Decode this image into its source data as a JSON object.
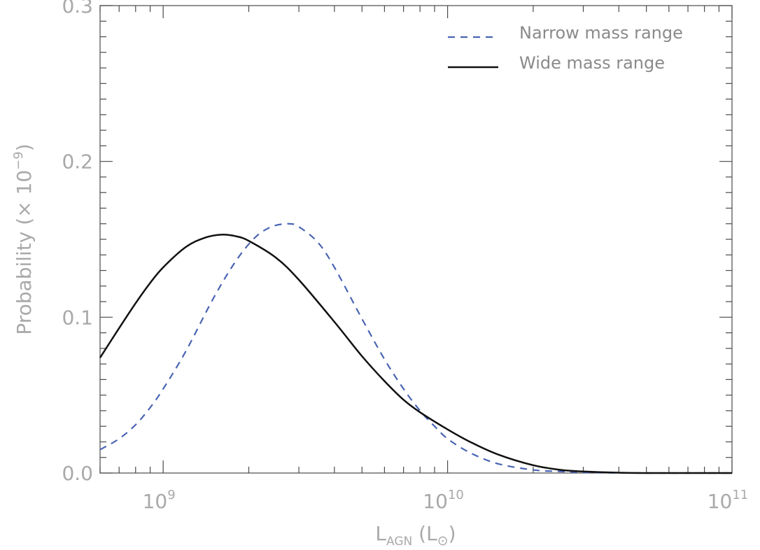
{
  "chart_data": {
    "type": "line",
    "xscale": "log",
    "xlim": [
      600000000,
      100000000000
    ],
    "ylim": [
      0,
      0.3
    ],
    "grid": false,
    "legend_position": "top-right",
    "xlabel": {
      "main": "L",
      "sub": "AGN",
      "open": " (L",
      "sub2": "⊙",
      "close": ")"
    },
    "ylabel": {
      "main": "Probability (× 10",
      "sup": "−9",
      "close": ")"
    },
    "x_ticks": [
      {
        "value": 1000000000,
        "base": "10",
        "exp": "9"
      },
      {
        "value": 10000000000,
        "base": "10",
        "exp": "10"
      },
      {
        "value": 100000000000,
        "base": "10",
        "exp": "11"
      }
    ],
    "y_ticks": [
      {
        "value": 0.0,
        "label": "0.0"
      },
      {
        "value": 0.1,
        "label": "0.1"
      },
      {
        "value": 0.2,
        "label": "0.2"
      },
      {
        "value": 0.3,
        "label": "0.3"
      }
    ],
    "series": [
      {
        "name": "Narrow mass range",
        "color": "#4a64b4",
        "style": "dashed",
        "x": [
          600000000,
          700000000,
          800000000,
          900000000,
          1000000000,
          1200000000,
          1500000000,
          1800000000,
          2100000000,
          2400000000,
          2750000000,
          3000000000,
          3500000000,
          4000000000,
          5000000000,
          6000000000,
          7000000000,
          8000000000,
          9000000000,
          10000000000,
          12000000000,
          15000000000,
          20000000000,
          25000000000,
          30000000000,
          40000000000,
          50000000000,
          70000000000,
          100000000000
        ],
        "y": [
          0.015,
          0.022,
          0.031,
          0.042,
          0.054,
          0.078,
          0.112,
          0.136,
          0.151,
          0.158,
          0.16,
          0.158,
          0.148,
          0.132,
          0.099,
          0.073,
          0.054,
          0.04,
          0.03,
          0.022,
          0.013,
          0.006,
          0.002,
          0.001,
          0.0004,
          0.0001,
          0.0,
          0.0,
          0.0
        ]
      },
      {
        "name": "Wide mass range",
        "color": "#111111",
        "style": "solid",
        "x": [
          600000000,
          700000000,
          800000000,
          900000000,
          1000000000,
          1200000000,
          1400000000,
          1600000000,
          1800000000,
          2000000000,
          2500000000,
          3000000000,
          4000000000,
          5000000000,
          6000000000,
          7000000000,
          8000000000,
          10000000000,
          12000000000,
          15000000000,
          20000000000,
          25000000000,
          30000000000,
          40000000000,
          50000000000,
          70000000000,
          100000000000
        ],
        "y": [
          0.074,
          0.093,
          0.109,
          0.122,
          0.132,
          0.145,
          0.151,
          0.153,
          0.152,
          0.149,
          0.138,
          0.124,
          0.097,
          0.075,
          0.059,
          0.047,
          0.039,
          0.028,
          0.02,
          0.012,
          0.005,
          0.002,
          0.001,
          0.0002,
          0.0,
          0.0,
          0.0
        ]
      }
    ]
  }
}
